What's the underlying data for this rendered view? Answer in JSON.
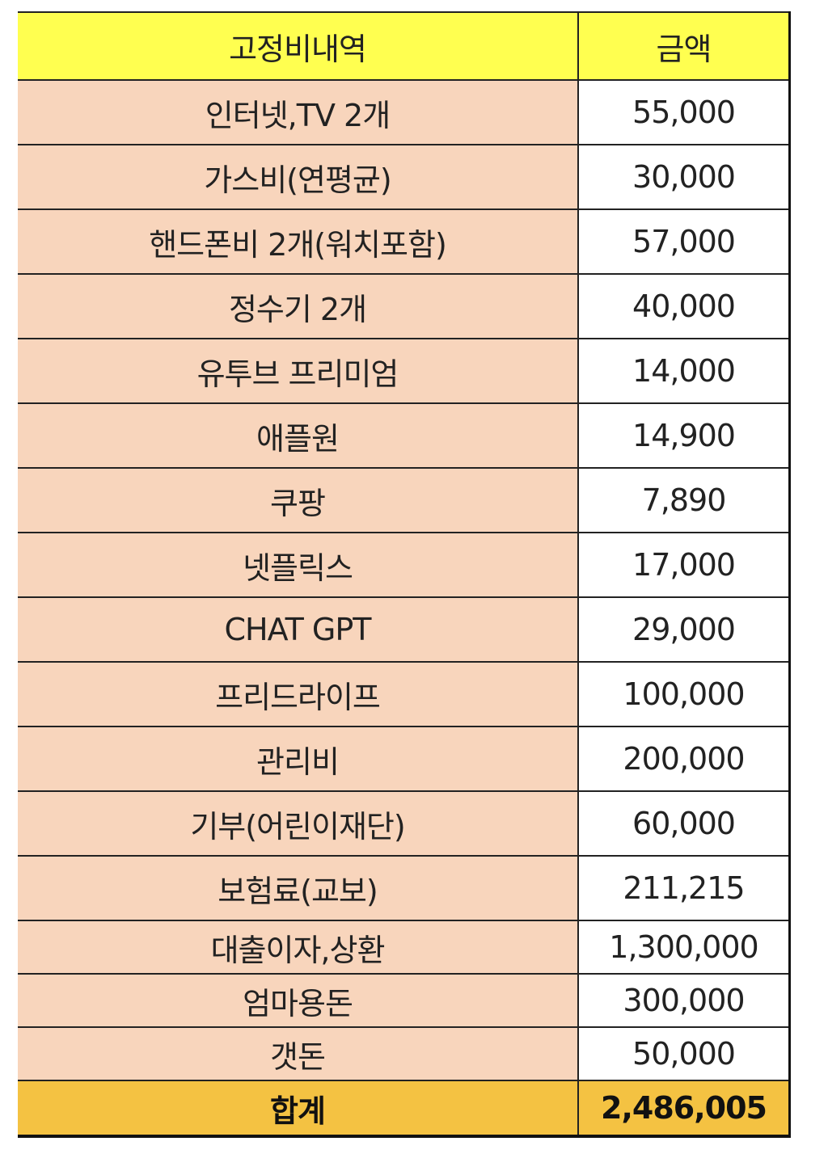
{
  "table": {
    "headers": [
      "고정비내역",
      "금액"
    ],
    "rows": [
      {
        "item": "인터넷,TV 2개",
        "amount": "55,000"
      },
      {
        "item": "가스비(연평균)",
        "amount": "30,000"
      },
      {
        "item": "핸드폰비 2개(워치포함)",
        "amount": "57,000"
      },
      {
        "item": "정수기 2개",
        "amount": "40,000"
      },
      {
        "item": "유투브 프리미엄",
        "amount": "14,000"
      },
      {
        "item": "애플원",
        "amount": "14,900"
      },
      {
        "item": "쿠팡",
        "amount": "7,890"
      },
      {
        "item": "넷플릭스",
        "amount": "17,000"
      },
      {
        "item": "CHAT GPT",
        "amount": "29,000"
      },
      {
        "item": "프리드라이프",
        "amount": "100,000"
      },
      {
        "item": "관리비",
        "amount": "200,000"
      },
      {
        "item": "기부(어린이재단)",
        "amount": "60,000"
      },
      {
        "item": "보험료(교보)",
        "amount": "211,215"
      },
      {
        "item": "대출이자,상환",
        "amount": "1,300,000"
      },
      {
        "item": "엄마용돈",
        "amount": "300,000"
      },
      {
        "item": "갯돈",
        "amount": "50,000"
      }
    ],
    "total": {
      "label": "합계",
      "amount": "2,486,005"
    }
  },
  "colors": {
    "header": "#FFFF50",
    "item_cell": "#F8D5BC",
    "total": "#F4C242"
  }
}
